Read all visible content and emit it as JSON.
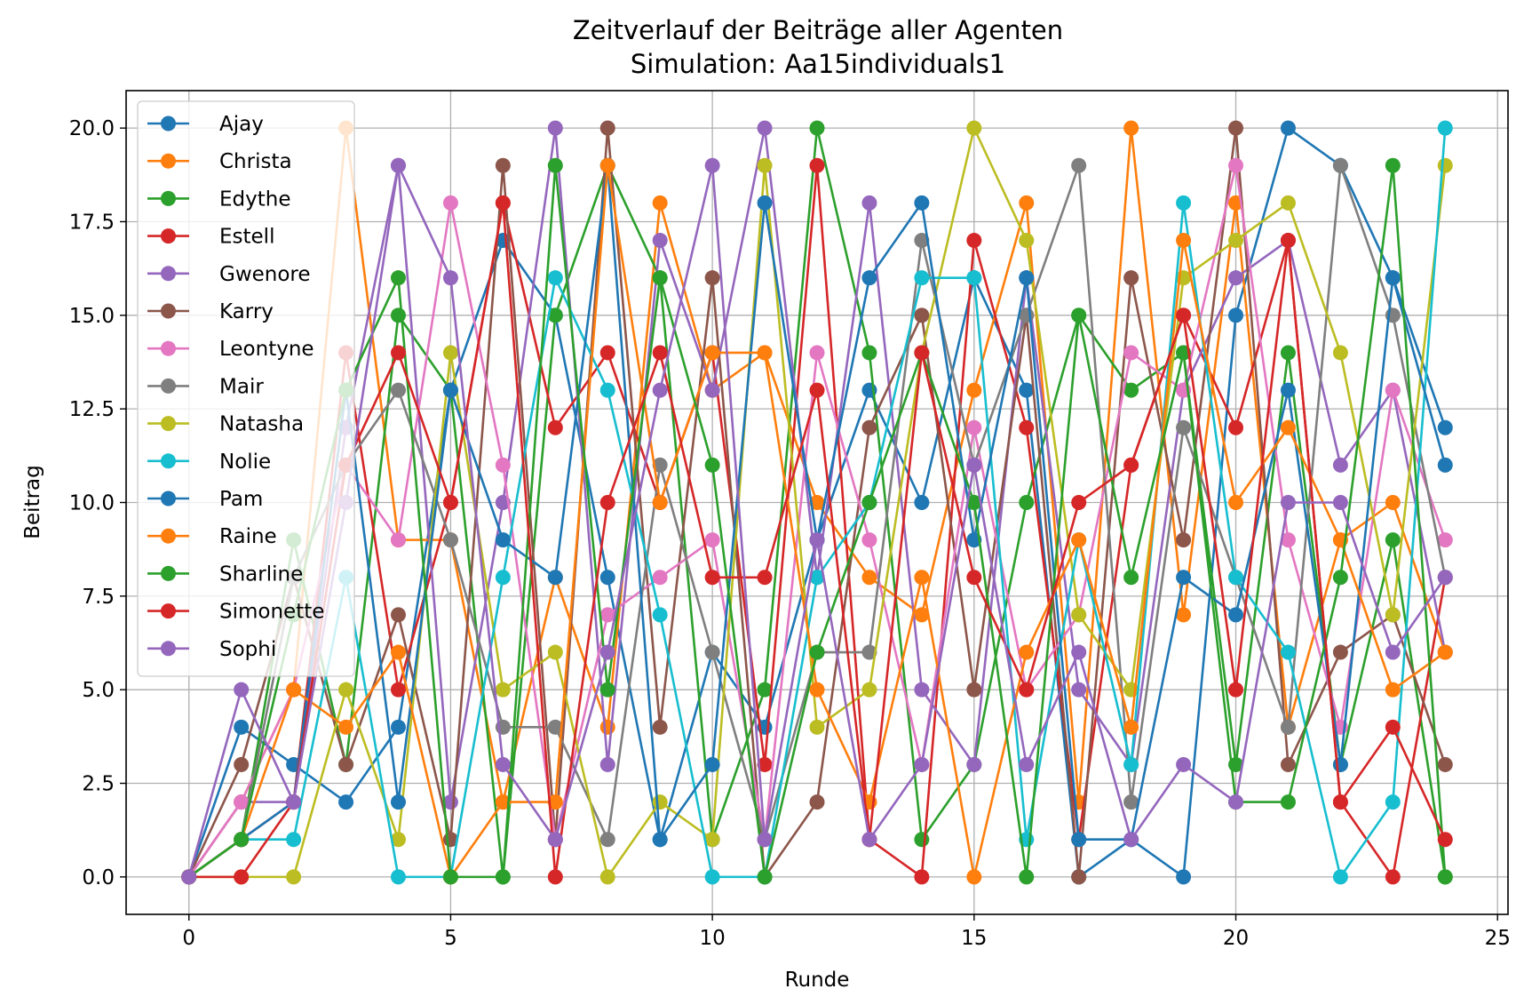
{
  "chart_data": {
    "type": "line",
    "title": "Zeitverlauf der Beiträge aller Agenten",
    "subtitle": "Simulation: Aa15individuals1",
    "xlabel": "Runde",
    "ylabel": "Beitrag",
    "xlim": [
      -1.2,
      25.2
    ],
    "ylim": [
      -1.0,
      21.0
    ],
    "xticks": [
      0,
      5,
      10,
      15,
      20,
      25
    ],
    "yticks": [
      0.0,
      2.5,
      5.0,
      7.5,
      10.0,
      12.5,
      15.0,
      17.5,
      20.0
    ],
    "xtick_labels": [
      "0",
      "5",
      "10",
      "15",
      "20",
      "25"
    ],
    "ytick_labels": [
      "0.0",
      "2.5",
      "5.0",
      "7.5",
      "10.0",
      "12.5",
      "15.0",
      "17.5",
      "20.0"
    ],
    "grid": true,
    "legend_position": "upper-left",
    "x": [
      0,
      1,
      2,
      3,
      4,
      5,
      6,
      7,
      8,
      9,
      10,
      11,
      12,
      13,
      14,
      15,
      16,
      17,
      18,
      19,
      20,
      21,
      22,
      23,
      24
    ],
    "series": [
      {
        "name": "Ajay",
        "color": "#1f77b4",
        "values": [
          0,
          4,
          3,
          2,
          4,
          13,
          17,
          15,
          8,
          1,
          6,
          4,
          9,
          13,
          10,
          16,
          13,
          0,
          1,
          0,
          15,
          20,
          19,
          16,
          12
        ]
      },
      {
        "name": "Christa",
        "color": "#ff7f0e",
        "values": [
          0,
          2,
          5,
          20,
          9,
          9,
          2,
          8,
          4,
          18,
          13,
          14,
          10,
          8,
          7,
          13,
          18,
          2,
          20,
          7,
          18,
          4,
          9,
          10,
          6
        ]
      },
      {
        "name": "Edythe",
        "color": "#2ca02c",
        "values": [
          0,
          1,
          9,
          3,
          15,
          13,
          0,
          15,
          19,
          16,
          1,
          5,
          20,
          14,
          1,
          3,
          10,
          15,
          13,
          14,
          3,
          14,
          3,
          9,
          0
        ]
      },
      {
        "name": "Estell",
        "color": "#d62728",
        "values": [
          0,
          1,
          2,
          14,
          5,
          10,
          18,
          12,
          14,
          10,
          14,
          3,
          19,
          1,
          0,
          17,
          12,
          1,
          11,
          15,
          12,
          17,
          2,
          0,
          8
        ]
      },
      {
        "name": "Gwenore",
        "color": "#9467bd",
        "values": [
          0,
          2,
          2,
          12,
          19,
          2,
          10,
          20,
          3,
          17,
          13,
          20,
          8,
          18,
          5,
          3,
          16,
          5,
          3,
          13,
          16,
          17,
          11,
          13,
          6
        ]
      },
      {
        "name": "Karry",
        "color": "#8c564b",
        "values": [
          0,
          3,
          8,
          3,
          7,
          1,
          19,
          1,
          20,
          4,
          16,
          0,
          2,
          12,
          15,
          5,
          15,
          0,
          16,
          9,
          20,
          3,
          6,
          7,
          3
        ]
      },
      {
        "name": "Leontyne",
        "color": "#e377c2",
        "values": [
          0,
          2,
          5,
          11,
          9,
          18,
          11,
          1,
          7,
          8,
          9,
          1,
          14,
          9,
          3,
          12,
          5,
          7,
          14,
          13,
          19,
          9,
          4,
          13,
          9
        ]
      },
      {
        "name": "Mair",
        "color": "#7f7f7f",
        "values": [
          0,
          1,
          8,
          11,
          13,
          9,
          4,
          4,
          1,
          11,
          6,
          1,
          6,
          6,
          17,
          11,
          15,
          19,
          2,
          12,
          8,
          4,
          19,
          15,
          8
        ]
      },
      {
        "name": "Natasha",
        "color": "#bcbd22",
        "values": [
          0,
          0,
          0,
          5,
          1,
          14,
          5,
          6,
          0,
          2,
          1,
          19,
          4,
          5,
          14,
          20,
          17,
          7,
          5,
          16,
          17,
          18,
          14,
          7,
          19
        ]
      },
      {
        "name": "Nolie",
        "color": "#17becf",
        "values": [
          0,
          1,
          1,
          8,
          0,
          0,
          8,
          16,
          13,
          7,
          0,
          0,
          8,
          10,
          16,
          16,
          1,
          9,
          3,
          18,
          8,
          6,
          0,
          2,
          20
        ]
      },
      {
        "name": "Pam",
        "color": "#1f77b4",
        "values": [
          0,
          1,
          2,
          13,
          2,
          13,
          9,
          8,
          19,
          1,
          3,
          18,
          9,
          16,
          18,
          9,
          16,
          1,
          1,
          8,
          7,
          13,
          3,
          16,
          11
        ]
      },
      {
        "name": "Raine",
        "color": "#ff7f0e",
        "values": [
          0,
          1,
          5,
          4,
          6,
          0,
          2,
          2,
          19,
          10,
          14,
          14,
          5,
          2,
          8,
          0,
          6,
          9,
          4,
          17,
          10,
          12,
          9,
          5,
          6
        ]
      },
      {
        "name": "Sharline",
        "color": "#2ca02c",
        "values": [
          0,
          1,
          7,
          13,
          16,
          0,
          0,
          19,
          5,
          16,
          11,
          0,
          6,
          10,
          14,
          10,
          0,
          15,
          8,
          14,
          2,
          2,
          8,
          19,
          0
        ]
      },
      {
        "name": "Simonette",
        "color": "#d62728",
        "values": [
          0,
          0,
          2,
          11,
          14,
          10,
          18,
          0,
          10,
          14,
          8,
          8,
          13,
          1,
          14,
          8,
          5,
          10,
          11,
          15,
          5,
          17,
          2,
          4,
          1
        ]
      },
      {
        "name": "Sophi",
        "color": "#9467bd",
        "values": [
          0,
          5,
          2,
          10,
          19,
          16,
          3,
          1,
          6,
          13,
          19,
          1,
          9,
          1,
          3,
          11,
          3,
          6,
          1,
          3,
          2,
          10,
          10,
          6,
          8
        ]
      }
    ]
  }
}
